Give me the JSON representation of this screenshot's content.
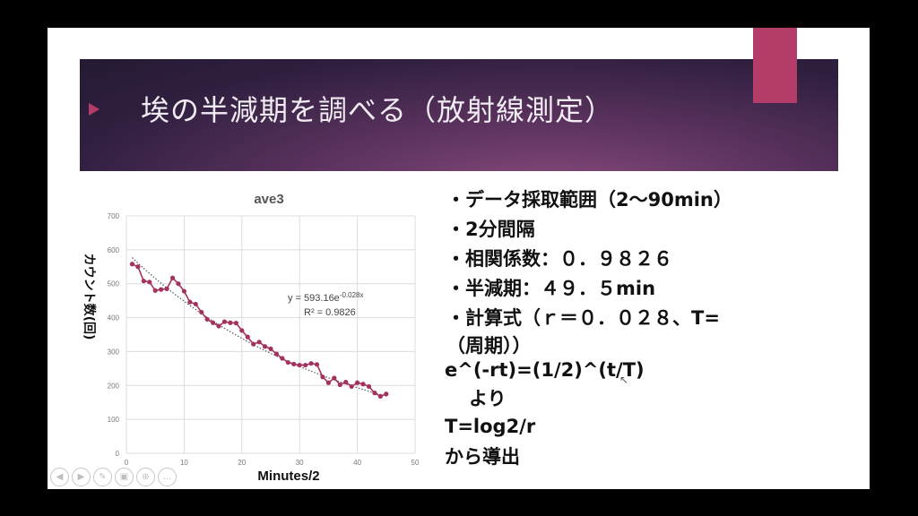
{
  "slide": {
    "title": "埃の半減期を調べる（放射線測定）"
  },
  "bullets": [
    "・データ採取範囲（2〜90min）",
    "・2分間隔",
    "・相関係数：０．９８２６",
    "・半減期：４９．５min",
    "・計算式（ｒ＝０．０２８、T=",
    "（周期））",
    "e^(-rt)=(1/2)^(t/T)",
    "より",
    "T=log2/r",
    "から導出"
  ],
  "toolbar": {
    "icons": [
      "prev-icon",
      "next-icon",
      "pen-icon",
      "slides-icon",
      "zoom-icon",
      "more-icon"
    ],
    "more_label": "…"
  },
  "colors": {
    "banner": "#3a2446",
    "accent": "#b43c68",
    "series": "#a4325e",
    "trend": "#555555"
  },
  "chart_data": {
    "type": "scatter",
    "title": "ave3",
    "xlabel": "Minutes/2",
    "ylabel": "カウント数(回)",
    "xlim": [
      0,
      50
    ],
    "ylim": [
      0,
      700
    ],
    "xticks": [
      0,
      10,
      20,
      30,
      40,
      50
    ],
    "yticks": [
      0,
      100,
      200,
      300,
      400,
      500,
      600,
      700
    ],
    "series": [
      {
        "x": [
          1,
          2,
          3,
          4,
          5,
          6,
          7,
          8,
          9,
          10,
          11,
          12,
          13,
          14,
          15,
          16,
          17,
          18,
          19,
          20,
          21,
          22,
          23,
          24,
          25,
          26,
          27,
          28,
          29,
          30,
          31,
          32,
          33,
          34,
          35,
          36,
          37,
          38,
          39,
          40,
          41,
          42,
          43,
          44,
          45
        ],
        "y": [
          558,
          550,
          508,
          505,
          480,
          483,
          485,
          517,
          500,
          478,
          446,
          440,
          416,
          395,
          385,
          375,
          388,
          385,
          384,
          362,
          343,
          322,
          328,
          315,
          308,
          293,
          280,
          268,
          263,
          260,
          260,
          265,
          262,
          225,
          208,
          222,
          202,
          210,
          197,
          208,
          204,
          197,
          178,
          168,
          175
        ]
      }
    ],
    "trendline": {
      "equation": "y = 593.16e",
      "exponent": "-0.028x",
      "r2": "R² = 0.9826",
      "a": 593.16,
      "b": -0.028
    }
  }
}
